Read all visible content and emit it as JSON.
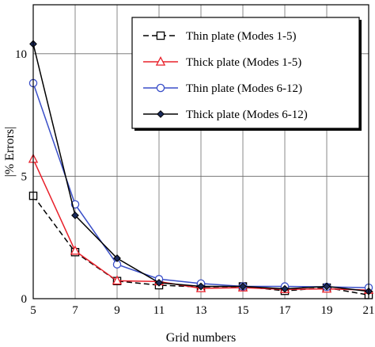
{
  "chart_data": {
    "type": "line",
    "xlabel": "Grid numbers",
    "ylabel": "|% Errors|",
    "xlim": [
      5,
      21
    ],
    "ylim": [
      0,
      12
    ],
    "x_ticks": [
      5,
      7,
      9,
      11,
      13,
      15,
      17,
      19,
      21
    ],
    "y_ticks": [
      0,
      5,
      10
    ],
    "grid": true,
    "legend_position": "top-right",
    "series": [
      {
        "name": "Thin plate (Modes 1-5)",
        "color": "#000000",
        "line_style": "dashed",
        "marker": "square",
        "x": [
          5,
          7,
          9,
          11,
          13,
          15,
          17,
          19,
          21
        ],
        "y": [
          4.2,
          1.9,
          0.72,
          0.55,
          0.48,
          0.5,
          0.32,
          0.45,
          0.15
        ]
      },
      {
        "name": "Thick plate (Modes 1-5)",
        "color": "#e8202a",
        "line_style": "solid",
        "marker": "triangle",
        "x": [
          5,
          7,
          9,
          11,
          13,
          15,
          17,
          19,
          21
        ],
        "y": [
          5.7,
          1.95,
          0.73,
          0.7,
          0.42,
          0.45,
          0.38,
          0.4,
          0.35
        ]
      },
      {
        "name": "Thin plate (Modes 6-12)",
        "color": "#3a4fc8",
        "line_style": "solid",
        "marker": "circle",
        "x": [
          5,
          7,
          9,
          11,
          13,
          15,
          17,
          19,
          21
        ],
        "y": [
          8.8,
          3.85,
          1.4,
          0.8,
          0.62,
          0.5,
          0.5,
          0.48,
          0.45
        ]
      },
      {
        "name": "Thick plate (Modes 6-12)",
        "color": "#000000",
        "line_style": "solid",
        "marker": "diamond",
        "x": [
          5,
          7,
          9,
          11,
          13,
          15,
          17,
          19,
          21
        ],
        "y": [
          10.4,
          3.4,
          1.65,
          0.65,
          0.5,
          0.5,
          0.4,
          0.5,
          0.3
        ]
      }
    ]
  },
  "colors": {
    "thick_modes_6_12_marker_fill": "#1a2a5a"
  }
}
